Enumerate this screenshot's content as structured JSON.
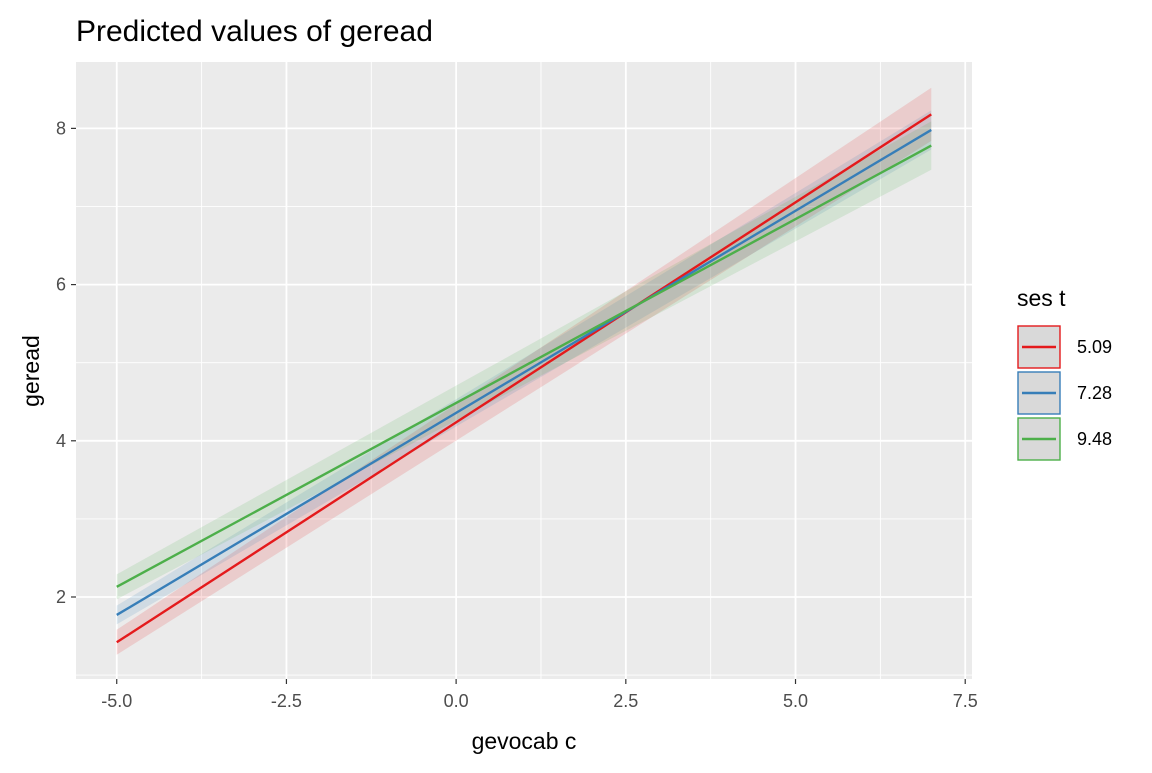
{
  "chart_data": {
    "type": "line",
    "title": "Predicted values of geread",
    "xlabel": "gevocab c",
    "ylabel": "geread",
    "xlim": [
      -5.6,
      7.6
    ],
    "ylim": [
      0.95,
      8.85
    ],
    "x_ticks": [
      -5.0,
      -2.5,
      0.0,
      2.5,
      5.0,
      7.5
    ],
    "x_tick_labels": [
      "-5.0",
      "-2.5",
      "0.0",
      "2.5",
      "5.0",
      "7.5"
    ],
    "y_ticks": [
      2,
      4,
      6,
      8
    ],
    "y_tick_labels": [
      "2",
      "4",
      "6",
      "8"
    ],
    "grid": true,
    "legend": {
      "title": "ses t",
      "position": "right"
    },
    "series": [
      {
        "name": "5.09",
        "color": "#e41a1c",
        "x": [
          -5.0,
          7.0
        ],
        "y": [
          1.42,
          8.18
        ],
        "ci_low": [
          1.26,
          7.84
        ],
        "ci_high": [
          1.58,
          8.52
        ]
      },
      {
        "name": "7.28",
        "color": "#377eb8",
        "x": [
          -5.0,
          7.0
        ],
        "y": [
          1.77,
          7.98
        ],
        "ci_low": [
          1.65,
          7.73
        ],
        "ci_high": [
          1.89,
          8.23
        ]
      },
      {
        "name": "9.48",
        "color": "#4daf4a",
        "x": [
          -5.0,
          7.0
        ],
        "y": [
          2.13,
          7.78
        ],
        "ci_low": [
          1.97,
          7.47
        ],
        "ci_high": [
          2.29,
          8.09
        ]
      }
    ]
  }
}
